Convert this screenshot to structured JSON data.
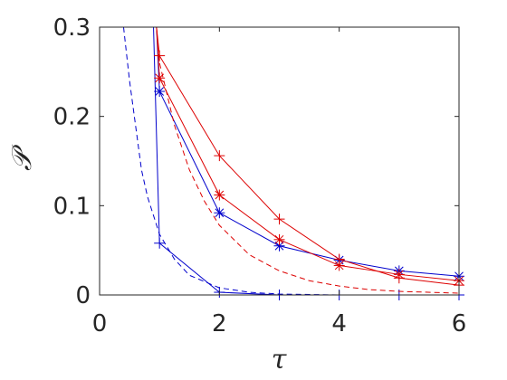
{
  "chart_data": {
    "type": "line",
    "title": "",
    "xlabel": "τ",
    "ylabel": "𝒫",
    "xlim": [
      0,
      6
    ],
    "ylim": [
      0,
      0.3
    ],
    "x_ticks": [
      0,
      2,
      4,
      6
    ],
    "x_tick_labels": [
      "0",
      "2",
      "4",
      "6"
    ],
    "y_ticks": [
      0,
      0.1,
      0.2,
      0.3
    ],
    "y_tick_labels": [
      "0",
      "0.1",
      "0.2",
      "0.3"
    ],
    "grid": false,
    "legend": "none",
    "series": [
      {
        "color": "#0000cc",
        "style": "solid",
        "marker": "plus",
        "x": [
          0.9,
          1,
          2,
          3,
          4,
          5,
          6
        ],
        "y": [
          0.3,
          0.058,
          0.003,
          0.0,
          0.0,
          0.0,
          0.0
        ]
      },
      {
        "color": "#0000cc",
        "style": "solid",
        "marker": "star",
        "x": [
          0.95,
          1,
          2,
          3,
          4,
          5,
          6
        ],
        "y": [
          0.3,
          0.228,
          0.092,
          0.055,
          0.039,
          0.027,
          0.021
        ]
      },
      {
        "color": "#0000cc",
        "style": "dashed",
        "marker": "none",
        "x": [
          0.4,
          0.5,
          0.6,
          0.7,
          0.8,
          1.0,
          1.25,
          1.5,
          2,
          2.5,
          3,
          4,
          5,
          6
        ],
        "y": [
          0.3,
          0.24,
          0.19,
          0.14,
          0.11,
          0.068,
          0.04,
          0.022,
          0.008,
          0.003,
          0.001,
          0.0,
          0.0,
          0.0
        ]
      },
      {
        "color": "#dd0000",
        "style": "solid",
        "marker": "plus",
        "x": [
          0.95,
          1,
          2,
          3,
          4,
          5,
          6
        ],
        "y": [
          0.3,
          0.268,
          0.156,
          0.085,
          0.04,
          0.019,
          0.011
        ]
      },
      {
        "color": "#dd0000",
        "style": "solid",
        "marker": "star",
        "x": [
          0.95,
          1,
          2,
          3,
          4,
          5,
          6
        ],
        "y": [
          0.3,
          0.243,
          0.112,
          0.062,
          0.033,
          0.023,
          0.016
        ]
      },
      {
        "color": "#dd0000",
        "style": "dashed",
        "marker": "none",
        "x": [
          0.95,
          1.0,
          1.25,
          1.5,
          1.75,
          2,
          2.5,
          3,
          3.5,
          4,
          4.5,
          5,
          6
        ],
        "y": [
          0.3,
          0.26,
          0.19,
          0.14,
          0.105,
          0.078,
          0.045,
          0.027,
          0.016,
          0.01,
          0.006,
          0.004,
          0.002
        ]
      }
    ]
  }
}
